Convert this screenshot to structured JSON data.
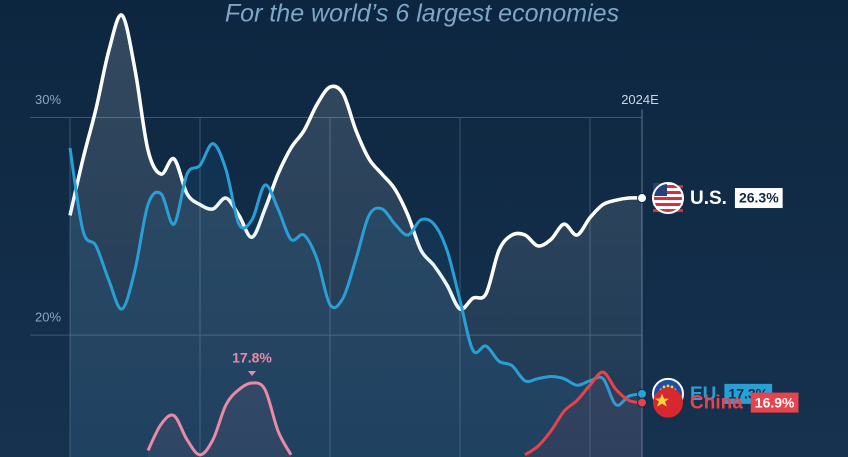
{
  "chart_data": {
    "type": "line",
    "subtitle": "For the world’s 6 largest economies",
    "x": [
      1980,
      1981,
      1982,
      1983,
      1984,
      1985,
      1986,
      1987,
      1988,
      1989,
      1990,
      1991,
      1992,
      1993,
      1994,
      1995,
      1996,
      1997,
      1998,
      1999,
      2000,
      2001,
      2002,
      2003,
      2004,
      2005,
      2006,
      2007,
      2008,
      2009,
      2010,
      2011,
      2012,
      2013,
      2014,
      2015,
      2016,
      2017,
      2018,
      2019,
      2020,
      2021,
      2022,
      2023,
      2024
    ],
    "xlim": [
      1980,
      2024
    ],
    "xticks": [
      {
        "value": 2024,
        "label": "2024E"
      }
    ],
    "x_gridlines": [
      1980,
      1990,
      2000,
      2010,
      2020
    ],
    "ylim": [
      14.4,
      35.4
    ],
    "yticks": [
      {
        "value": 30,
        "label": "30%"
      },
      {
        "value": 20,
        "label": "20%"
      }
    ],
    "grid": true,
    "series": [
      {
        "name": "U.S.",
        "color": "#ffffff",
        "fill_area": true,
        "values": [
          25.5,
          28.1,
          30.4,
          33.1,
          34.7,
          32.2,
          28.5,
          27.4,
          28.1,
          26.5,
          26.0,
          25.8,
          26.3,
          25.5,
          24.5,
          25.8,
          27.4,
          28.6,
          29.4,
          30.6,
          31.4,
          31.1,
          29.4,
          28.1,
          27.4,
          26.7,
          25.5,
          23.9,
          23.2,
          22.3,
          21.2,
          21.7,
          21.9,
          23.9,
          24.6,
          24.6,
          24.1,
          24.4,
          25.1,
          24.6,
          25.4,
          26.0,
          26.2,
          26.3,
          26.3
        ],
        "value_labels": [
          null,
          null,
          null,
          null,
          null,
          null,
          null,
          null,
          null,
          null,
          null,
          null,
          null,
          null,
          null,
          null,
          null,
          null,
          null,
          null,
          null,
          null,
          null,
          null,
          null,
          null,
          null,
          null,
          null,
          null,
          null,
          null,
          null,
          null,
          null,
          null,
          null,
          null,
          null,
          null,
          null,
          null,
          null,
          null,
          "26.3%"
        ]
      },
      {
        "name": "EU",
        "color": "#2a9fd6",
        "values": [
          28.6,
          24.8,
          24.1,
          22.5,
          21.2,
          23.0,
          26.0,
          26.5,
          25.1,
          27.4,
          27.8,
          28.8,
          27.6,
          25.1,
          25.3,
          26.9,
          25.8,
          24.4,
          24.6,
          23.5,
          21.4,
          21.7,
          23.5,
          25.5,
          25.8,
          25.1,
          24.6,
          25.3,
          25.1,
          23.9,
          21.6,
          19.3,
          19.5,
          18.8,
          18.6,
          17.9,
          18.0,
          18.1,
          18.0,
          17.7,
          17.9,
          18.0,
          16.8,
          17.2,
          17.3
        ],
        "value_labels": [
          null,
          null,
          null,
          null,
          null,
          null,
          null,
          null,
          null,
          null,
          null,
          null,
          null,
          null,
          null,
          null,
          null,
          null,
          null,
          null,
          null,
          null,
          null,
          null,
          null,
          null,
          null,
          null,
          null,
          null,
          null,
          null,
          null,
          null,
          null,
          null,
          null,
          null,
          null,
          null,
          null,
          null,
          null,
          null,
          "17.3%"
        ]
      },
      {
        "color": "#e88aa8",
        "values": [
          null,
          null,
          null,
          null,
          null,
          null,
          14.7,
          15.9,
          16.3,
          15.2,
          14.5,
          15.2,
          16.8,
          17.5,
          17.8,
          17.5,
          15.6,
          14.5,
          null,
          null,
          null,
          null,
          null,
          null,
          null,
          null,
          null,
          null,
          null,
          null,
          null,
          null,
          null,
          null,
          null,
          null,
          null,
          null,
          null,
          null,
          null,
          null,
          null,
          null,
          null
        ],
        "value_labels": [
          null,
          null,
          null,
          null,
          null,
          null,
          null,
          null,
          null,
          null,
          null,
          null,
          null,
          null,
          "17.8%",
          null,
          null,
          null,
          null,
          null,
          null,
          null,
          null,
          null,
          null,
          null,
          null,
          null,
          null,
          null,
          null,
          null,
          null,
          null,
          null,
          null,
          null,
          null,
          null,
          null,
          null,
          null,
          null,
          null,
          null
        ]
      },
      {
        "name": "China",
        "color": "#e8424a",
        "values": [
          null,
          null,
          null,
          null,
          null,
          null,
          null,
          null,
          null,
          null,
          null,
          null,
          null,
          null,
          null,
          null,
          null,
          null,
          null,
          null,
          null,
          null,
          null,
          null,
          null,
          null,
          null,
          null,
          null,
          null,
          null,
          null,
          null,
          null,
          null,
          14.5,
          14.9,
          15.6,
          16.5,
          17.0,
          17.7,
          18.3,
          17.5,
          17.0,
          16.9
        ],
        "value_labels": [
          null,
          null,
          null,
          null,
          null,
          null,
          null,
          null,
          null,
          null,
          null,
          null,
          null,
          null,
          null,
          null,
          null,
          null,
          null,
          null,
          null,
          null,
          null,
          null,
          null,
          null,
          null,
          null,
          null,
          null,
          null,
          null,
          null,
          null,
          null,
          null,
          null,
          null,
          null,
          null,
          null,
          null,
          null,
          null,
          "16.9%"
        ]
      }
    ]
  }
}
